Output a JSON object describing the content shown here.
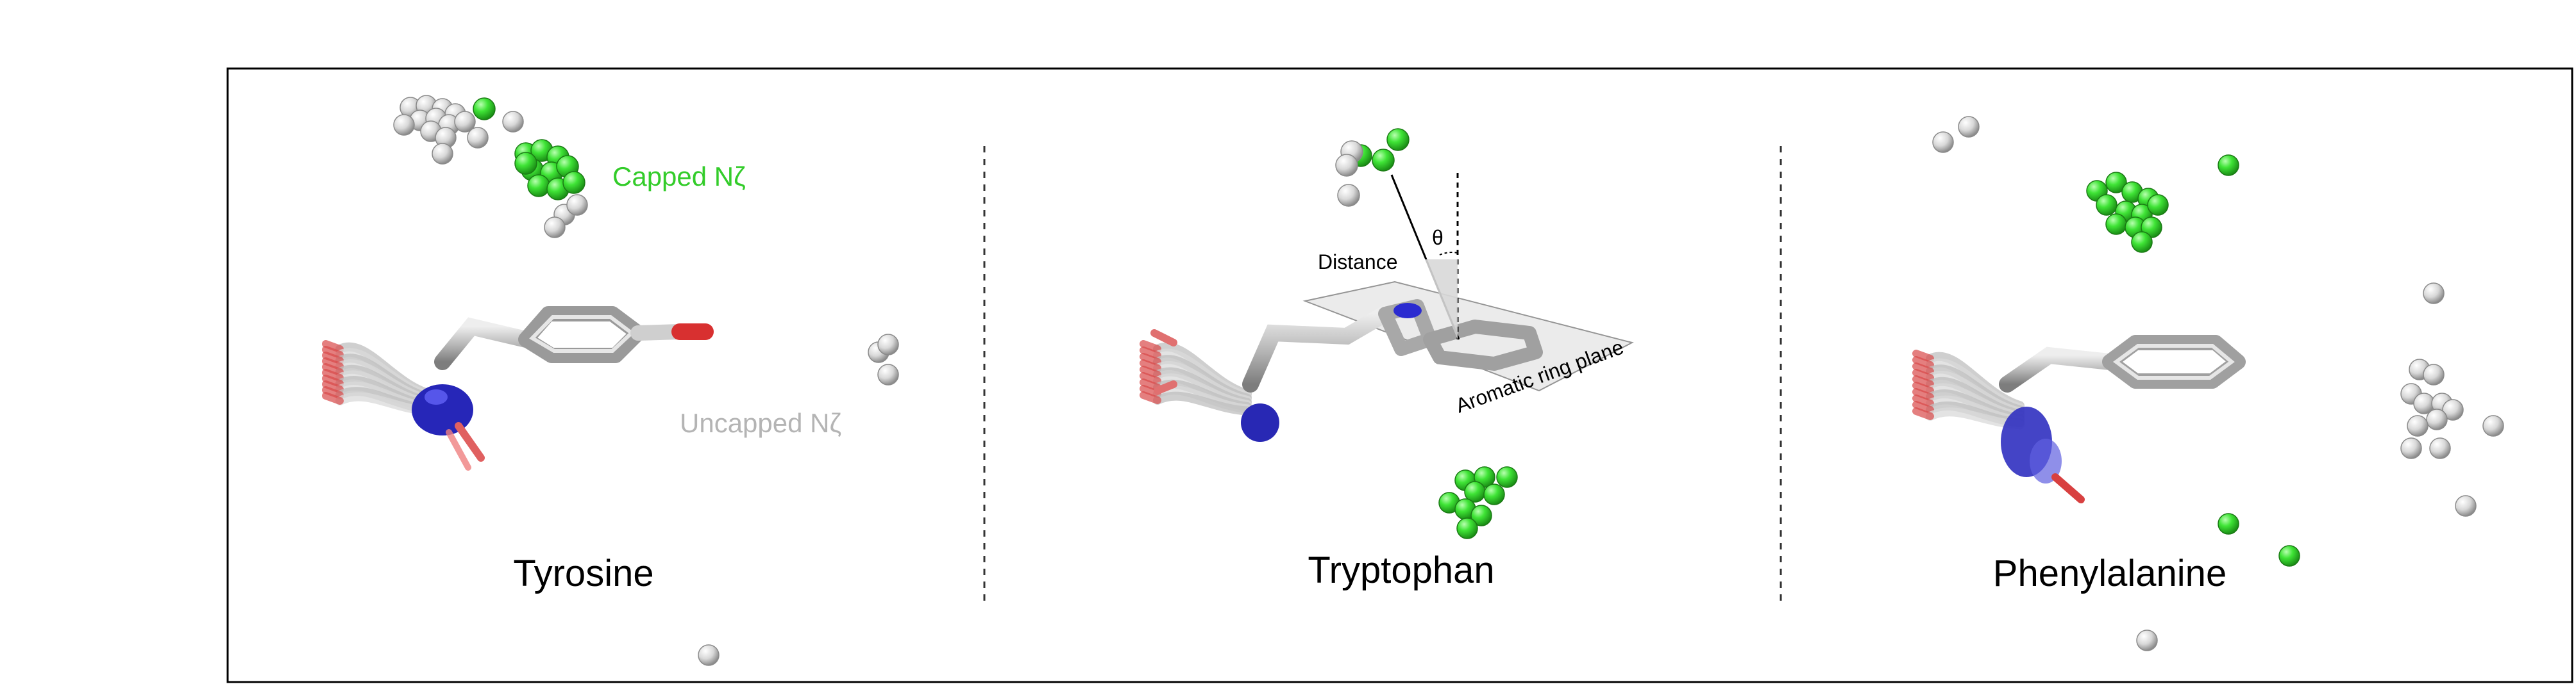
{
  "panels": [
    {
      "title": "Tyrosine"
    },
    {
      "title": "Tryptophan"
    },
    {
      "title": "Phenylalanine"
    }
  ],
  "legend": {
    "capped": "Capped Nζ",
    "uncapped": "Uncapped Nζ"
  },
  "geometry_labels": {
    "distance": "Distance",
    "angle": "θ",
    "plane": "Aromatic ring plane"
  },
  "colors": {
    "capped": "#33dd2e",
    "uncapped": "#cfcfcf",
    "carbon": "#bdbdbd",
    "nitrogen": "#2b2bd0",
    "oxygen": "#d94040",
    "frame": "#000000"
  }
}
